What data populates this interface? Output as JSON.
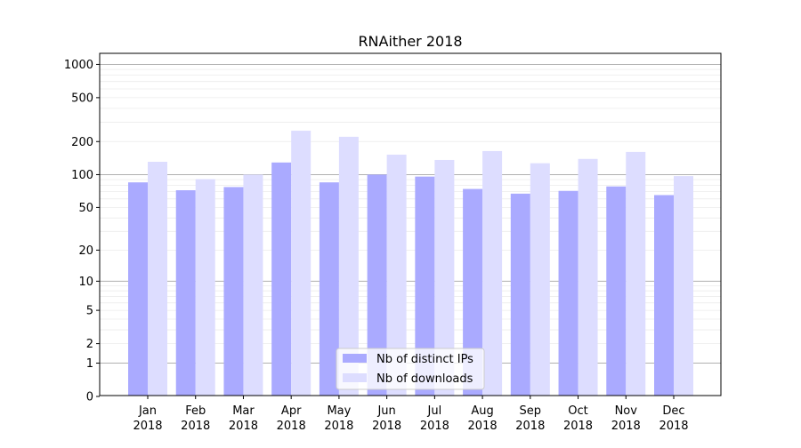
{
  "chart_data": {
    "type": "bar",
    "title": "RNAither 2018",
    "xlabel": "",
    "ylabel": "",
    "yscale": "symlog (log of 1+value)",
    "ylim": [
      0,
      1200
    ],
    "yticks": [
      0,
      1,
      2,
      5,
      10,
      20,
      50,
      100,
      200,
      500,
      1000
    ],
    "grid": true,
    "legend_position": "bottom-center",
    "categories": [
      "Jan\n2018",
      "Feb\n2018",
      "Mar\n2018",
      "Apr\n2018",
      "May\n2018",
      "Jun\n2018",
      "Jul\n2018",
      "Aug\n2018",
      "Sep\n2018",
      "Oct\n2018",
      "Nov\n2018",
      "Dec\n2018"
    ],
    "series": [
      {
        "name": "Nb of distinct IPs",
        "color": "#aaaaff",
        "values": [
          85,
          72,
          77,
          129,
          85,
          100,
          96,
          74,
          67,
          71,
          78,
          65
        ]
      },
      {
        "name": "Nb of downloads",
        "color": "#ddddff",
        "values": [
          131,
          91,
          100,
          251,
          221,
          152,
          136,
          164,
          127,
          139,
          161,
          97
        ]
      }
    ]
  }
}
